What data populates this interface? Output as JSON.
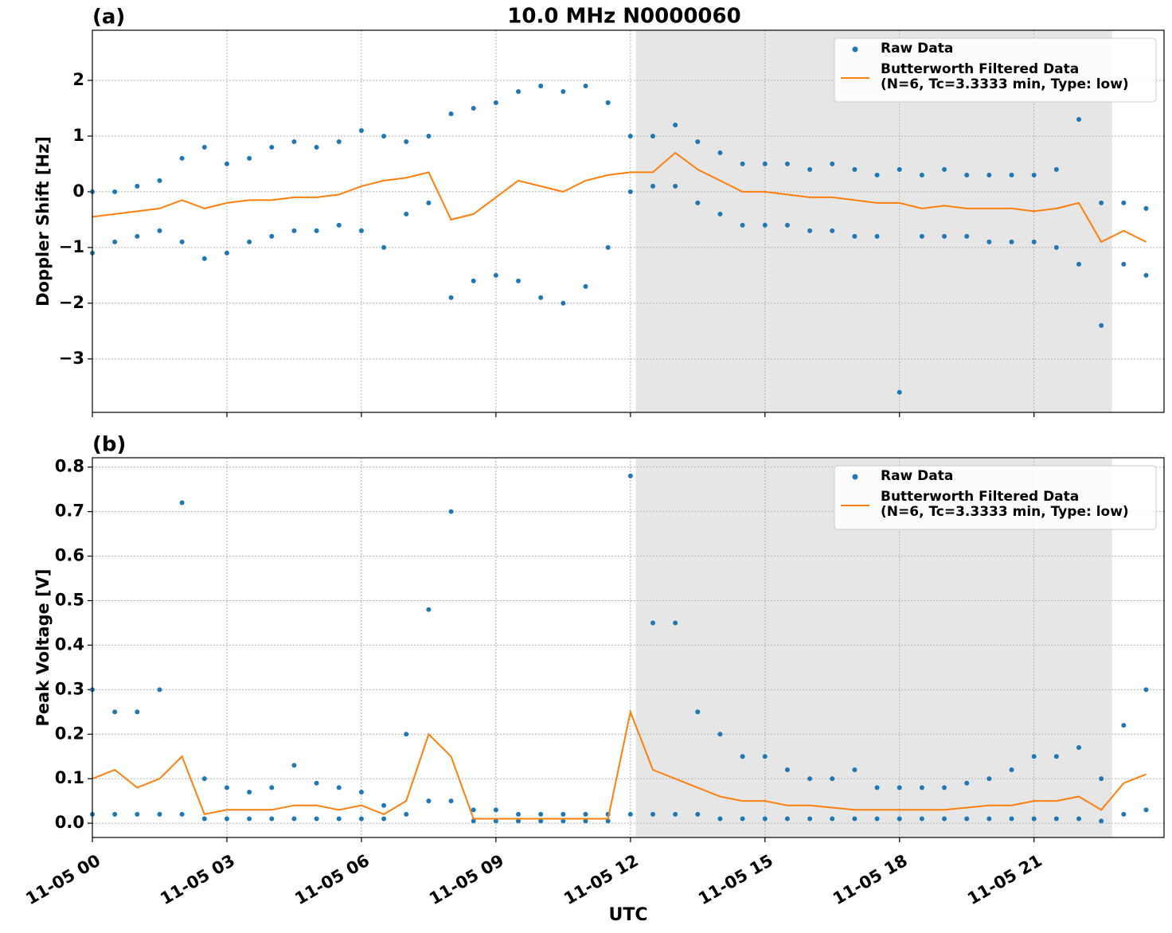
{
  "chart_data": [
    {
      "type": "scatter_line",
      "title": "10.0 MHz N0000060",
      "panel_label": "(a)",
      "ylabel": "Doppler Shift [Hz]",
      "xlim": [
        0,
        23.9
      ],
      "xticks": [
        0,
        3,
        6,
        9,
        12,
        15,
        18,
        21
      ],
      "ylim": [
        -3.96,
        2.9
      ],
      "yticks": [
        {
          "value": -3,
          "label": "−3"
        },
        {
          "value": -2,
          "label": "−2"
        },
        {
          "value": -1,
          "label": "−1"
        },
        0,
        1,
        2
      ],
      "grid": true,
      "legend": "upper right",
      "shade": [
        12.12,
        22.74
      ],
      "series": [
        {
          "name": "Raw Data",
          "color": "#1f77b4",
          "marker": "dot",
          "x": [
            0,
            0.5,
            1,
            1.5,
            2,
            2.5,
            3,
            3.5,
            4,
            4.5,
            5,
            5.5,
            6,
            6.5,
            7,
            7.5,
            8,
            8.5,
            9,
            9.5,
            10,
            10.5,
            11,
            11.5,
            12,
            12.5,
            13,
            13.5,
            14,
            14.5,
            15,
            15.5,
            16,
            16.5,
            17,
            17.5,
            18,
            18.5,
            19,
            19.5,
            20,
            20.5,
            21,
            21.5,
            22,
            22.5,
            23,
            23.5,
            0,
            0.5,
            1,
            1.5,
            2,
            2.5,
            3,
            3.5,
            4,
            4.5,
            5,
            5.5,
            6,
            6.5,
            7,
            7.5,
            8,
            8.5,
            9,
            9.5,
            10,
            10.5,
            11,
            11.5,
            12,
            12.5,
            13,
            13.5,
            14,
            14.5,
            15,
            15.5,
            16,
            16.5,
            17,
            17.5,
            18,
            18.5,
            19,
            19.5,
            20,
            20.5,
            21,
            21.5,
            22,
            22.5,
            23,
            23.5
          ],
          "values": [
            0,
            0,
            0.1,
            0.2,
            0.6,
            0.8,
            0.5,
            0.6,
            0.8,
            0.9,
            0.8,
            0.9,
            1.1,
            1.0,
            0.9,
            1.0,
            1.4,
            1.5,
            1.6,
            1.8,
            1.9,
            1.8,
            1.9,
            1.6,
            1.0,
            1.0,
            1.2,
            0.9,
            0.7,
            0.5,
            0.5,
            0.5,
            0.4,
            0.5,
            0.4,
            0.3,
            0.4,
            0.3,
            0.4,
            0.3,
            0.3,
            0.3,
            0.3,
            0.4,
            1.3,
            -0.2,
            -0.2,
            -0.3,
            -1.1,
            -0.9,
            -0.8,
            -0.7,
            -0.9,
            -1.2,
            -1.1,
            -0.9,
            -0.8,
            -0.7,
            -0.7,
            -0.6,
            -0.7,
            -1.0,
            -0.4,
            -0.2,
            -1.9,
            -1.6,
            -1.5,
            -1.6,
            -1.9,
            -2.0,
            -1.7,
            -1.0,
            0.0,
            0.1,
            0.1,
            -0.2,
            -0.4,
            -0.6,
            -0.6,
            -0.6,
            -0.7,
            -0.7,
            -0.8,
            -0.8,
            -3.6,
            -0.8,
            -0.8,
            -0.8,
            -0.9,
            -0.9,
            -0.9,
            -1.0,
            -1.3,
            -2.4,
            -1.3,
            -1.5
          ]
        },
        {
          "name": "Butterworth Filtered Data\n(N=6, Tc=3.3333 min, Type: low)",
          "color": "#ff7f0e",
          "marker": "line",
          "x": [
            0,
            0.5,
            1,
            1.5,
            2,
            2.5,
            3,
            3.5,
            4,
            4.5,
            5,
            5.5,
            6,
            6.5,
            7,
            7.5,
            8,
            8.5,
            9,
            9.5,
            10,
            10.5,
            11,
            11.5,
            12,
            12.5,
            13,
            13.5,
            14,
            14.5,
            15,
            15.5,
            16,
            16.5,
            17,
            17.5,
            18,
            18.5,
            19,
            19.5,
            20,
            20.5,
            21,
            21.5,
            22,
            22.5,
            23,
            23.5
          ],
          "values": [
            -0.45,
            -0.4,
            -0.35,
            -0.3,
            -0.15,
            -0.3,
            -0.2,
            -0.15,
            -0.15,
            -0.1,
            -0.1,
            -0.05,
            0.1,
            0.2,
            0.25,
            0.35,
            -0.5,
            -0.4,
            -0.1,
            0.2,
            0.1,
            0.0,
            0.2,
            0.3,
            0.35,
            0.35,
            0.7,
            0.4,
            0.2,
            0.0,
            0.0,
            -0.05,
            -0.1,
            -0.1,
            -0.15,
            -0.2,
            -0.2,
            -0.3,
            -0.25,
            -0.3,
            -0.3,
            -0.3,
            -0.35,
            -0.3,
            -0.2,
            -0.9,
            -0.7,
            -0.9
          ]
        }
      ]
    },
    {
      "type": "scatter_line",
      "panel_label": "(b)",
      "ylabel": "Peak Voltage [V]",
      "xlabel": "UTC",
      "xlim": [
        0,
        23.9
      ],
      "xticks": [
        {
          "value": 0,
          "label": "11-05 00"
        },
        {
          "value": 3,
          "label": "11-05 03"
        },
        {
          "value": 6,
          "label": "11-05 06"
        },
        {
          "value": 9,
          "label": "11-05 09"
        },
        {
          "value": 12,
          "label": "11-05 12"
        },
        {
          "value": 15,
          "label": "11-05 15"
        },
        {
          "value": 18,
          "label": "11-05 18"
        },
        {
          "value": 21,
          "label": "11-05 21"
        }
      ],
      "ylim": [
        -0.032,
        0.821
      ],
      "yticks": [
        {
          "value": 0,
          "label": "0.0"
        },
        {
          "value": 0.1,
          "label": "0.1"
        },
        {
          "value": 0.2,
          "label": "0.2"
        },
        {
          "value": 0.3,
          "label": "0.3"
        },
        {
          "value": 0.4,
          "label": "0.4"
        },
        {
          "value": 0.5,
          "label": "0.5"
        },
        {
          "value": 0.6,
          "label": "0.6"
        },
        {
          "value": 0.7,
          "label": "0.7"
        },
        {
          "value": 0.8,
          "label": "0.8"
        }
      ],
      "grid": true,
      "legend": "upper right",
      "shade": [
        12.12,
        22.74
      ],
      "series": [
        {
          "name": "Raw Data",
          "color": "#1f77b4",
          "marker": "dot",
          "x": [
            0,
            0.5,
            1,
            1.5,
            2,
            2.5,
            3,
            3.5,
            4,
            4.5,
            5,
            5.5,
            6,
            6.5,
            7,
            7.5,
            8,
            8.5,
            9,
            9.5,
            10,
            10.5,
            11,
            11.5,
            12,
            12.5,
            13,
            13.5,
            14,
            14.5,
            15,
            15.5,
            16,
            16.5,
            17,
            17.5,
            18,
            18.5,
            19,
            19.5,
            20,
            20.5,
            21,
            21.5,
            22,
            22.5,
            23,
            23.5,
            0,
            0.5,
            1,
            1.5,
            2,
            2.5,
            3,
            3.5,
            4,
            4.5,
            5,
            5.5,
            6,
            6.5,
            7,
            7.5,
            8,
            8.5,
            9,
            9.5,
            10,
            10.5,
            11,
            11.5,
            12,
            12.5,
            13,
            13.5,
            14,
            14.5,
            15,
            15.5,
            16,
            16.5,
            17,
            17.5,
            18,
            18.5,
            19,
            19.5,
            20,
            20.5,
            21,
            21.5,
            22,
            22.5,
            23,
            23.5
          ],
          "values": [
            0.3,
            0.25,
            0.25,
            0.3,
            0.72,
            0.1,
            0.08,
            0.07,
            0.08,
            0.13,
            0.09,
            0.08,
            0.07,
            0.04,
            0.2,
            0.48,
            0.7,
            0.03,
            0.03,
            0.02,
            0.02,
            0.02,
            0.02,
            0.02,
            0.78,
            0.45,
            0.45,
            0.25,
            0.2,
            0.15,
            0.15,
            0.12,
            0.1,
            0.1,
            0.12,
            0.08,
            0.08,
            0.08,
            0.08,
            0.09,
            0.1,
            0.12,
            0.15,
            0.15,
            0.17,
            0.1,
            0.22,
            0.3,
            0.02,
            0.02,
            0.02,
            0.02,
            0.02,
            0.01,
            0.01,
            0.01,
            0.01,
            0.01,
            0.01,
            0.01,
            0.01,
            0.01,
            0.02,
            0.05,
            0.05,
            0.005,
            0.005,
            0.005,
            0.005,
            0.005,
            0.005,
            0.005,
            0.02,
            0.02,
            0.02,
            0.02,
            0.01,
            0.01,
            0.01,
            0.01,
            0.01,
            0.01,
            0.01,
            0.01,
            0.01,
            0.01,
            0.01,
            0.01,
            0.01,
            0.01,
            0.01,
            0.01,
            0.01,
            0.005,
            0.02,
            0.03
          ]
        },
        {
          "name": "Butterworth Filtered Data\n(N=6, Tc=3.3333 min, Type: low)",
          "color": "#ff7f0e",
          "marker": "line",
          "x": [
            0,
            0.5,
            1,
            1.5,
            2,
            2.5,
            3,
            3.5,
            4,
            4.5,
            5,
            5.5,
            6,
            6.5,
            7,
            7.5,
            8,
            8.5,
            9,
            9.5,
            10,
            10.5,
            11,
            11.5,
            12,
            12.5,
            13,
            13.5,
            14,
            14.5,
            15,
            15.5,
            16,
            16.5,
            17,
            17.5,
            18,
            18.5,
            19,
            19.5,
            20,
            20.5,
            21,
            21.5,
            22,
            22.5,
            23,
            23.5
          ],
          "values": [
            0.1,
            0.12,
            0.08,
            0.1,
            0.15,
            0.02,
            0.03,
            0.03,
            0.03,
            0.04,
            0.04,
            0.03,
            0.04,
            0.02,
            0.05,
            0.2,
            0.15,
            0.01,
            0.01,
            0.01,
            0.01,
            0.01,
            0.01,
            0.01,
            0.25,
            0.12,
            0.1,
            0.08,
            0.06,
            0.05,
            0.05,
            0.04,
            0.04,
            0.035,
            0.03,
            0.03,
            0.03,
            0.03,
            0.03,
            0.035,
            0.04,
            0.04,
            0.05,
            0.05,
            0.06,
            0.03,
            0.09,
            0.11
          ]
        }
      ]
    }
  ]
}
